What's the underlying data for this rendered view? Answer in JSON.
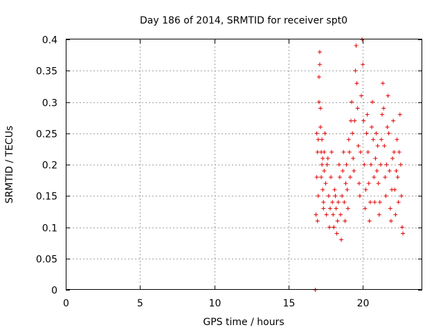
{
  "chart_data": {
    "type": "scatter",
    "title": "Day 186 of 2014, SRMTID for receiver spt0",
    "xlabel": "GPS time / hours",
    "ylabel": "SRMTID / TECUs",
    "xlim": [
      0,
      24
    ],
    "ylim": [
      0,
      0.4
    ],
    "xticks": [
      0,
      5,
      10,
      15,
      20
    ],
    "yticks": [
      0,
      0.05,
      0.1,
      0.15,
      0.2,
      0.25,
      0.3,
      0.35,
      0.4
    ],
    "xtick_labels": [
      "0",
      "5",
      "10",
      "15",
      "20"
    ],
    "ytick_labels": [
      "0",
      "0.05",
      "0.1",
      "0.15",
      "0.2",
      "0.25",
      "0.3",
      "0.35",
      "0.4"
    ],
    "grid": true,
    "marker": "plus",
    "color": "#e00000",
    "series": [
      {
        "x": [
          16.85,
          16.9,
          16.9,
          16.95,
          16.95,
          17.0,
          17.0,
          17.05,
          17.05,
          17.1,
          17.1,
          17.15,
          17.15,
          17.2,
          17.2,
          17.25,
          17.25,
          17.3,
          17.3,
          17.35,
          17.35,
          17.4,
          17.4,
          17.45,
          17.5,
          17.55,
          17.6,
          17.65,
          17.7,
          17.75,
          17.8,
          17.85,
          17.9,
          17.95,
          18.0,
          18.05,
          18.1,
          18.15,
          18.2,
          18.25,
          18.3,
          18.35,
          18.4,
          18.45,
          18.5,
          18.55,
          18.6,
          18.65,
          18.7,
          18.75,
          18.8,
          18.85,
          18.9,
          18.95,
          19.0,
          19.05,
          19.1,
          19.15,
          19.2,
          19.25,
          19.3,
          19.35,
          19.4,
          19.45,
          19.5,
          19.55,
          19.6,
          19.65,
          19.7,
          19.75,
          19.8,
          19.85,
          19.9,
          19.95,
          20.0,
          20.05,
          20.1,
          20.15,
          20.2,
          20.25,
          20.3,
          20.35,
          20.4,
          20.45,
          20.5,
          20.55,
          20.6,
          20.65,
          20.7,
          20.75,
          20.8,
          20.85,
          20.9,
          20.95,
          21.0,
          21.05,
          21.1,
          21.15,
          21.2,
          21.25,
          21.3,
          21.35,
          21.4,
          21.45,
          21.5,
          21.55,
          21.6,
          21.65,
          21.7,
          21.75,
          21.8,
          21.85,
          21.9,
          21.95,
          22.0,
          22.05,
          22.1,
          22.15,
          22.2,
          22.25,
          22.3,
          22.35,
          22.4,
          22.45,
          22.5,
          22.55,
          22.6,
          22.65,
          22.7
        ],
        "y": [
          0.12,
          0.18,
          0.25,
          0.22,
          0.11,
          0.15,
          0.24,
          0.3,
          0.34,
          0.36,
          0.38,
          0.29,
          0.26,
          0.22,
          0.18,
          0.2,
          0.24,
          0.21,
          0.16,
          0.14,
          0.13,
          0.19,
          0.22,
          0.25,
          0.17,
          0.12,
          0.2,
          0.21,
          0.15,
          0.1,
          0.13,
          0.18,
          0.22,
          0.14,
          0.12,
          0.1,
          0.16,
          0.15,
          0.13,
          0.09,
          0.11,
          0.14,
          0.2,
          0.18,
          0.12,
          0.08,
          0.15,
          0.19,
          0.22,
          0.14,
          0.11,
          0.17,
          0.2,
          0.16,
          0.13,
          0.24,
          0.22,
          0.18,
          0.27,
          0.3,
          0.25,
          0.21,
          0.19,
          0.27,
          0.35,
          0.39,
          0.33,
          0.29,
          0.23,
          0.17,
          0.15,
          0.22,
          0.31,
          0.4,
          0.36,
          0.27,
          0.2,
          0.13,
          0.16,
          0.25,
          0.28,
          0.22,
          0.17,
          0.11,
          0.14,
          0.2,
          0.26,
          0.3,
          0.24,
          0.18,
          0.14,
          0.21,
          0.25,
          0.19,
          0.23,
          0.17,
          0.12,
          0.14,
          0.2,
          0.24,
          0.28,
          0.33,
          0.29,
          0.23,
          0.18,
          0.15,
          0.2,
          0.26,
          0.31,
          0.25,
          0.19,
          0.13,
          0.11,
          0.16,
          0.21,
          0.27,
          0.22,
          0.16,
          0.12,
          0.19,
          0.24,
          0.18,
          0.14,
          0.22,
          0.28,
          0.2,
          0.15,
          0.1,
          0.09
        ],
        "extra_points": [
          [
            16.8,
            0.0
          ]
        ]
      }
    ]
  }
}
